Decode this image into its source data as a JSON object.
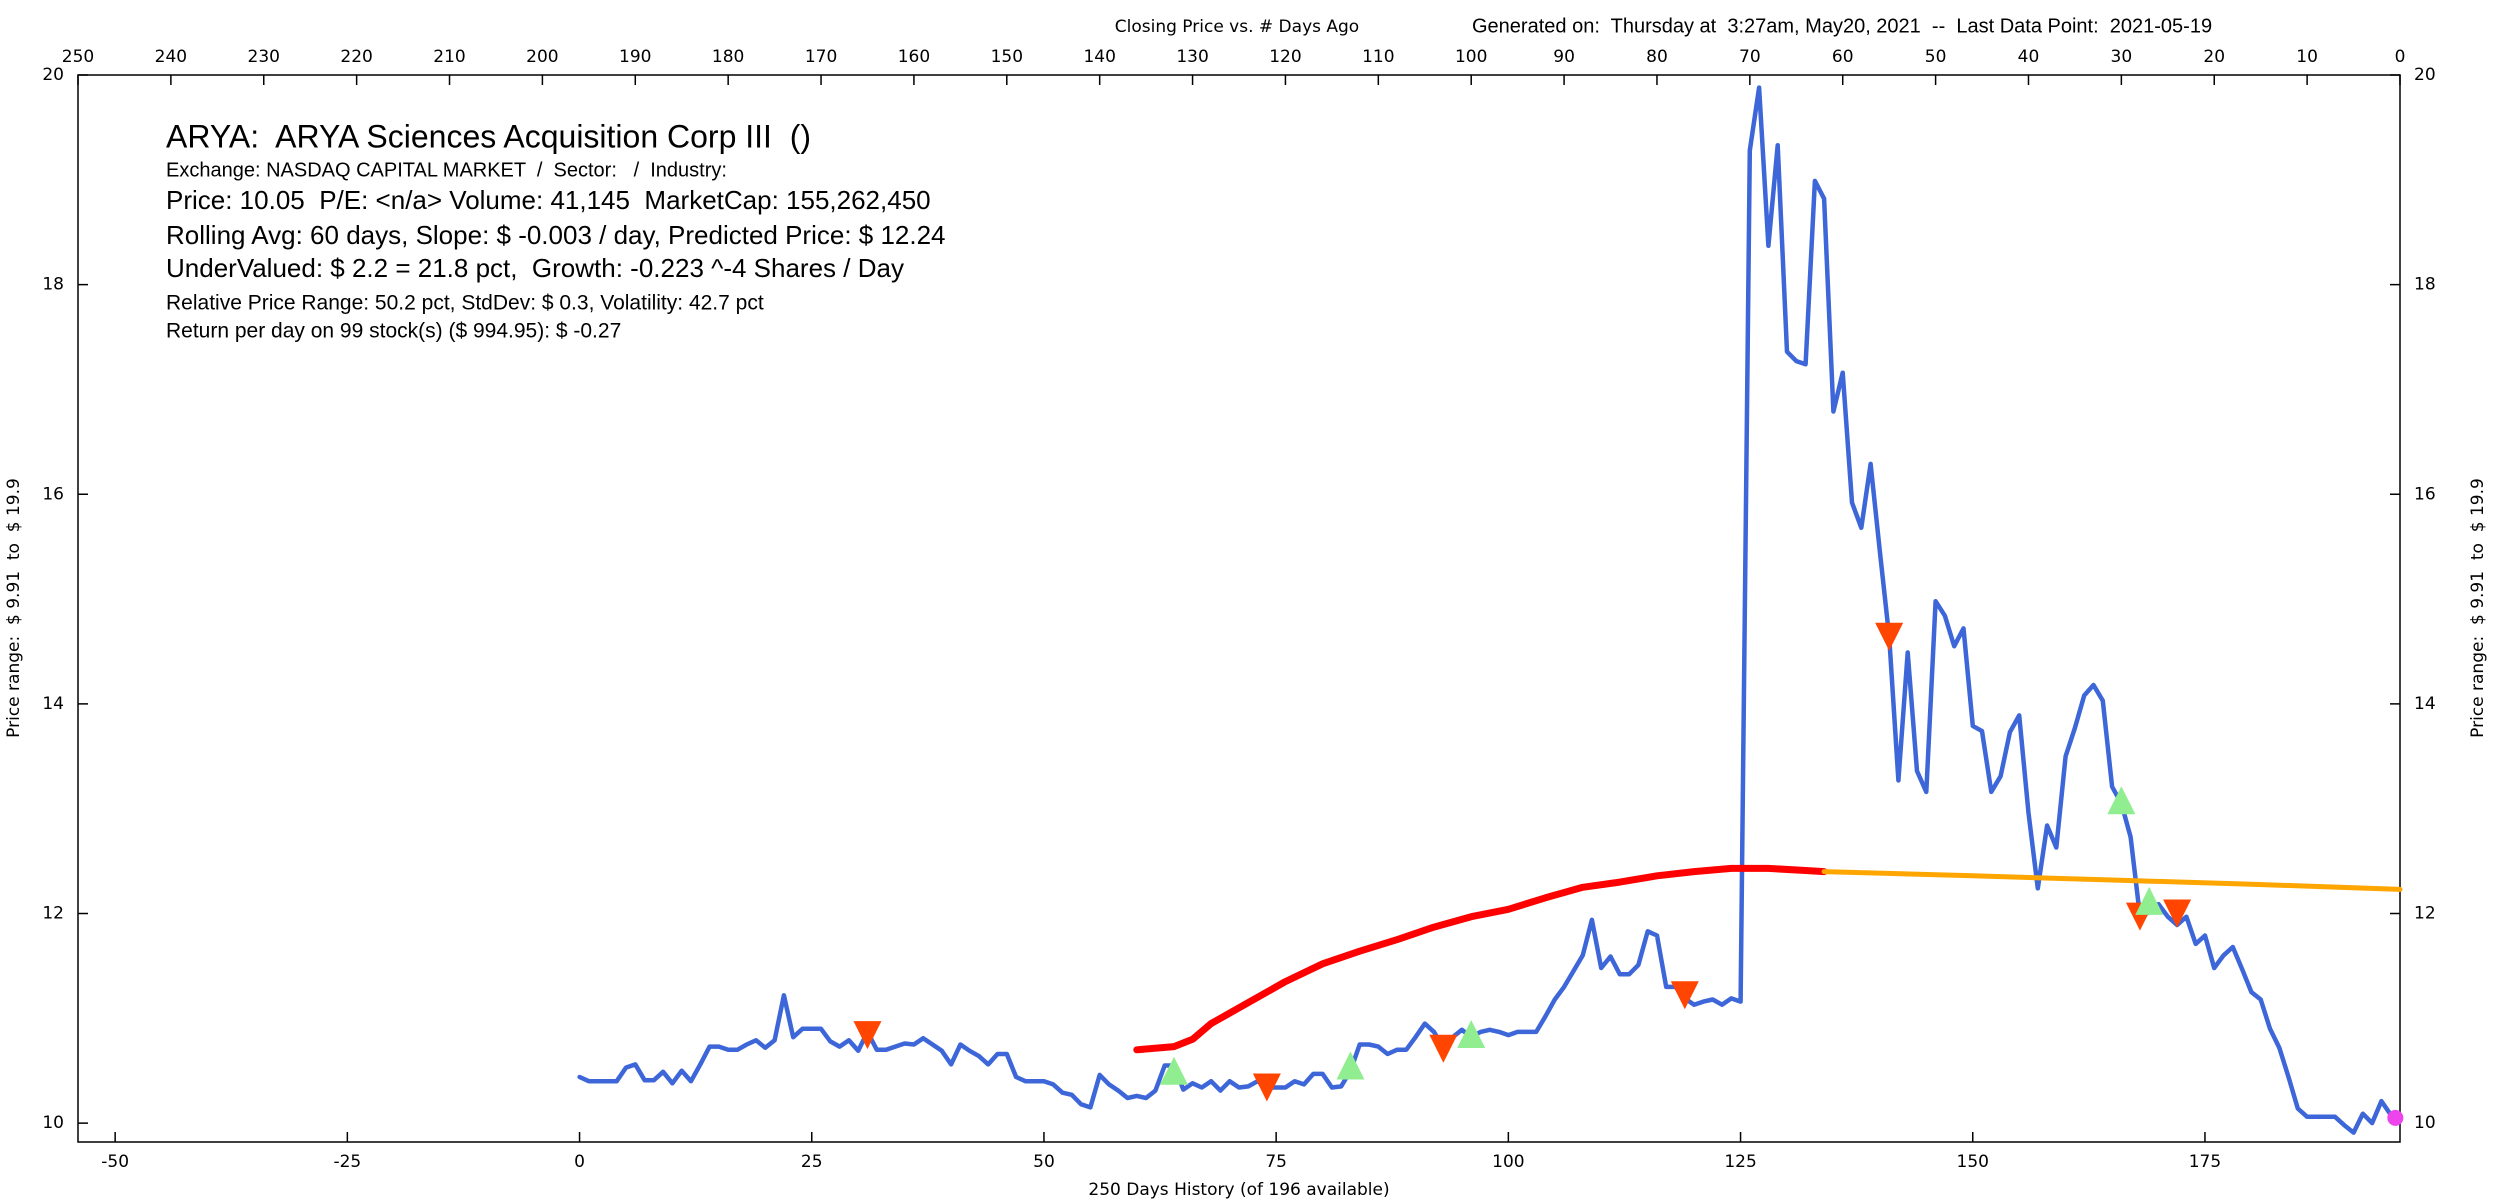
{
  "chart_data": {
    "type": "line",
    "title": "Closing Price vs. # Days Ago",
    "subtitle": "Generated on:  Thursday at  3:27am, May20, 2021  --  Last Data Point:  2021-05-19",
    "x_label": "250 Days History (of 196 available)",
    "y_label": "Price range:  $ 9.91  to  $ 19.9",
    "info_lines": [
      "ARYA:  ARYA Sciences Acquisition Corp III  ()",
      "Exchange: NASDAQ CAPITAL MARKET  /  Sector:   /  Industry: ",
      "Price: 10.05  P/E: <n/a> Volume: 41,145  MarketCap: 155,262,450",
      "Rolling Avg: 60 days, Slope: $ -0.003 / day, Predicted Price: $ 12.24",
      "UnderValued: $ 2.2 = 21.8 pct,  Growth: -0.223 ^-4 Shares / Day",
      "Relative Price Range: 50.2 pct, StdDev: $ 0.3, Volatility: 42.7 pct",
      "Return per day on 99 stock(s) ($ 994.95): $ -0.27"
    ],
    "xlim": [
      -54,
      196
    ],
    "xticks": [
      -50,
      -25,
      0,
      25,
      50,
      75,
      100,
      125,
      150,
      175
    ],
    "x2lim": [
      250,
      0
    ],
    "x2ticks": [
      250,
      240,
      230,
      220,
      210,
      200,
      190,
      180,
      170,
      160,
      150,
      140,
      130,
      120,
      110,
      100,
      90,
      80,
      70,
      60,
      50,
      40,
      30,
      20,
      10,
      0
    ],
    "ylim": [
      9.82,
      20
    ],
    "yticks": [
      10,
      12,
      14,
      16,
      18,
      20
    ],
    "series": [
      {
        "color": "#3d66d8",
        "type": "line",
        "width": 4.5,
        "x": [
          0,
          1,
          2,
          3,
          4,
          5,
          6,
          7,
          8,
          9,
          10,
          11,
          12,
          13,
          14,
          15,
          16,
          17,
          18,
          19,
          20,
          21,
          22,
          23,
          24,
          25,
          26,
          27,
          28,
          29,
          30,
          31,
          32,
          33,
          34,
          35,
          36,
          37,
          38,
          39,
          40,
          41,
          42,
          43,
          44,
          45,
          46,
          47,
          48,
          49,
          50,
          51,
          52,
          53,
          54,
          55,
          56,
          57,
          58,
          59,
          60,
          61,
          62,
          63,
          64,
          65,
          66,
          67,
          68,
          69,
          70,
          71,
          72,
          73,
          74,
          75,
          76,
          77,
          78,
          79,
          80,
          81,
          82,
          83,
          84,
          85,
          86,
          87,
          88,
          89,
          90,
          91,
          92,
          93,
          94,
          95,
          96,
          97,
          98,
          99,
          100,
          101,
          102,
          103,
          104,
          105,
          106,
          107,
          108,
          109,
          110,
          111,
          112,
          113,
          114,
          115,
          116,
          117,
          118,
          119,
          120,
          121,
          122,
          123,
          124,
          125,
          126,
          127,
          128,
          129,
          130,
          131,
          132,
          133,
          134,
          135,
          136,
          137,
          138,
          139,
          140,
          141,
          142,
          143,
          144,
          145,
          146,
          147,
          148,
          149,
          150,
          151,
          152,
          153,
          154,
          155,
          156,
          157,
          158,
          159,
          160,
          161,
          162,
          163,
          164,
          165,
          166,
          167,
          168,
          169,
          170,
          171,
          172,
          173,
          174,
          175,
          176,
          177,
          178,
          179,
          180,
          181,
          182,
          183,
          184,
          185,
          186,
          187,
          188,
          189,
          190,
          191,
          192,
          193,
          194,
          195
        ],
        "values": [
          10.44,
          10.4,
          10.4,
          10.4,
          10.4,
          10.53,
          10.56,
          10.41,
          10.41,
          10.49,
          10.38,
          10.5,
          10.4,
          10.56,
          10.73,
          10.73,
          10.7,
          10.7,
          10.75,
          10.79,
          10.72,
          10.79,
          11.22,
          10.82,
          10.9,
          10.9,
          10.9,
          10.78,
          10.73,
          10.79,
          10.69,
          10.87,
          10.7,
          10.7,
          10.73,
          10.76,
          10.75,
          10.81,
          10.75,
          10.69,
          10.56,
          10.75,
          10.69,
          10.64,
          10.56,
          10.66,
          10.66,
          10.44,
          10.4,
          10.4,
          10.4,
          10.37,
          10.29,
          10.27,
          10.18,
          10.15,
          10.46,
          10.37,
          10.31,
          10.24,
          10.26,
          10.24,
          10.31,
          10.55,
          10.55,
          10.32,
          10.38,
          10.34,
          10.4,
          10.31,
          10.4,
          10.34,
          10.35,
          10.4,
          10.34,
          10.34,
          10.34,
          10.4,
          10.37,
          10.47,
          10.47,
          10.34,
          10.35,
          10.5,
          10.75,
          10.75,
          10.73,
          10.66,
          10.7,
          10.7,
          10.82,
          10.95,
          10.87,
          10.72,
          10.82,
          10.89,
          10.82,
          10.87,
          10.89,
          10.87,
          10.84,
          10.87,
          10.87,
          10.87,
          11.02,
          11.18,
          11.3,
          11.45,
          11.6,
          11.94,
          11.48,
          11.59,
          11.42,
          11.42,
          11.51,
          11.83,
          11.79,
          11.3,
          11.3,
          11.19,
          11.13,
          11.16,
          11.18,
          11.13,
          11.19,
          11.16,
          19.28,
          19.88,
          18.37,
          19.33,
          17.36,
          17.27,
          17.24,
          18.99,
          18.82,
          16.79,
          17.16,
          15.92,
          15.68,
          16.29,
          15.45,
          14.64,
          13.27,
          14.49,
          13.36,
          13.16,
          14.98,
          14.84,
          14.55,
          14.72,
          13.79,
          13.74,
          13.16,
          13.31,
          13.73,
          13.89,
          12.96,
          12.24,
          12.84,
          12.63,
          13.5,
          13.77,
          14.08,
          14.18,
          14.03,
          13.21,
          13.05,
          12.73,
          11.98,
          12.01,
          12.09,
          11.97,
          11.89,
          11.97,
          11.71,
          11.79,
          11.48,
          11.6,
          11.68,
          11.47,
          11.25,
          11.18,
          10.9,
          10.72,
          10.44,
          10.14,
          10.06,
          10.06,
          10.06,
          10.06,
          9.98,
          9.91,
          10.09,
          10.0,
          10.21,
          10.08
        ]
      },
      {
        "color": "#ff0000",
        "type": "line",
        "width": 7,
        "x": [
          60,
          64,
          66,
          68,
          72,
          76,
          80,
          84,
          88,
          92,
          96,
          100,
          104,
          108,
          112,
          116,
          120,
          124,
          128,
          132,
          134
        ],
        "values": [
          10.7,
          10.73,
          10.8,
          10.95,
          11.15,
          11.35,
          11.52,
          11.64,
          11.75,
          11.87,
          11.97,
          12.04,
          12.15,
          12.25,
          12.3,
          12.36,
          12.4,
          12.43,
          12.43,
          12.41,
          12.4
        ]
      },
      {
        "color": "#ffa500",
        "type": "line",
        "width": 5,
        "x": [
          134,
          150,
          165,
          180,
          196
        ],
        "values": [
          12.4,
          12.36,
          12.32,
          12.28,
          12.23
        ]
      },
      {
        "color": "#ff4500",
        "type": "scatter",
        "marker": "triangle-down",
        "x": [
          31,
          74,
          93,
          119,
          141,
          168,
          172
        ],
        "values": [
          10.84,
          10.34,
          10.71,
          11.22,
          14.64,
          11.97,
          12.0
        ]
      },
      {
        "color": "#90ee90",
        "type": "scatter",
        "marker": "triangle-up",
        "x": [
          64,
          83,
          96,
          166,
          169
        ],
        "values": [
          10.5,
          10.55,
          10.85,
          13.08,
          12.12
        ]
      },
      {
        "color": "#ee44ee",
        "type": "scatter",
        "marker": "circle",
        "x": [
          195.5
        ],
        "values": [
          10.05
        ]
      }
    ]
  }
}
